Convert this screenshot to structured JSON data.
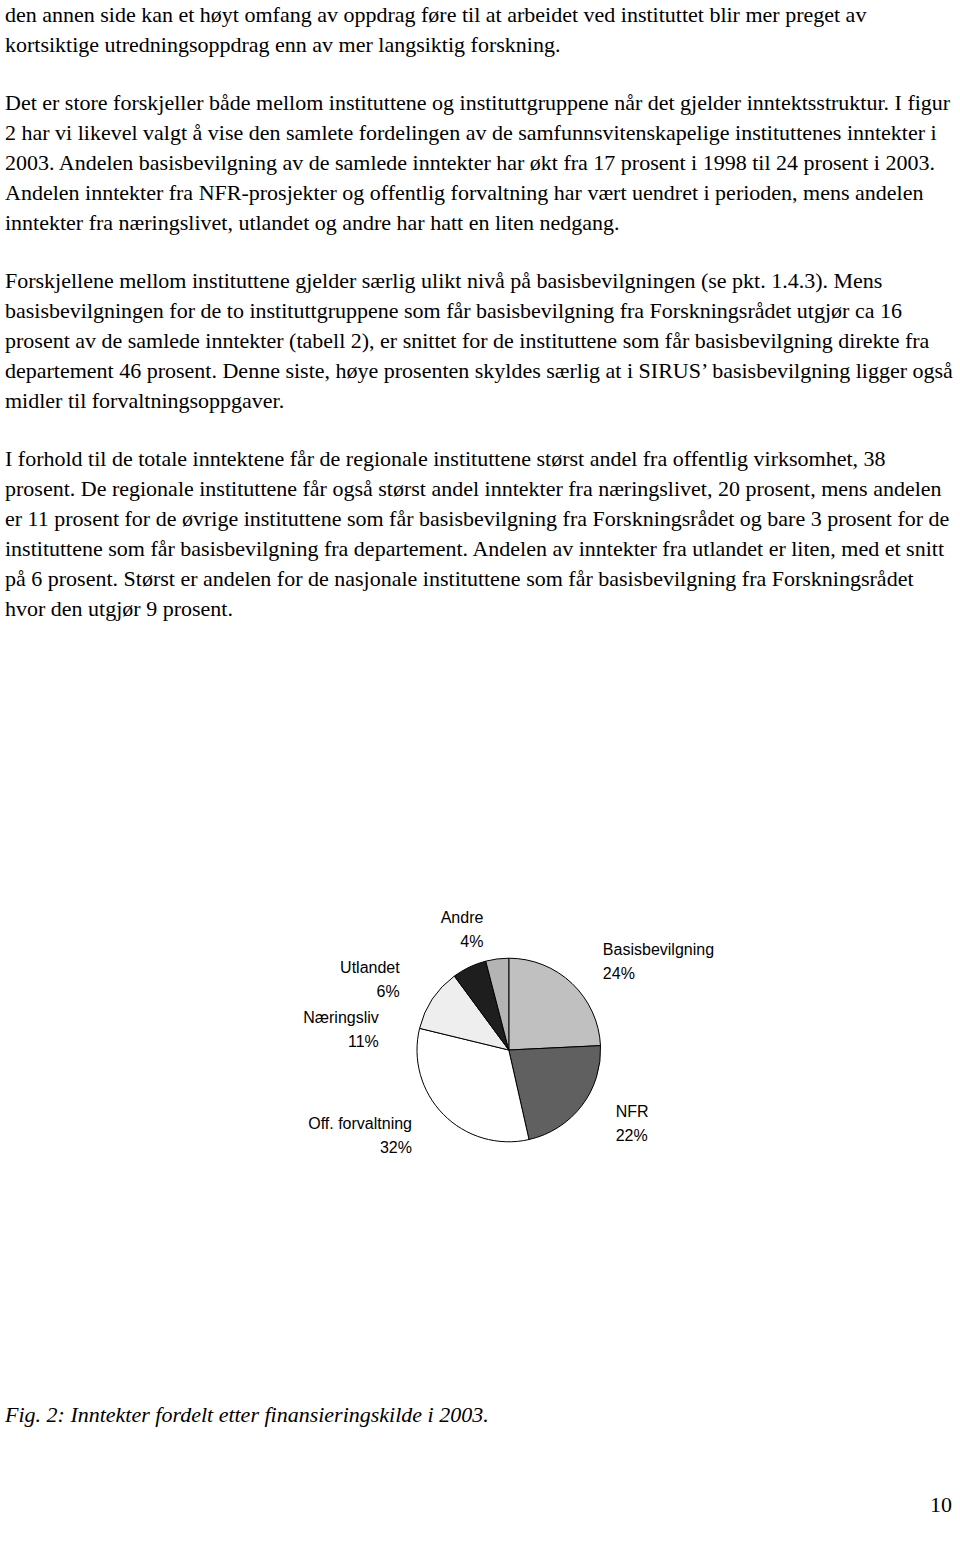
{
  "paragraphs": [
    "den annen side kan et høyt omfang av oppdrag føre til at arbeidet ved instituttet blir mer preget av kortsiktige utredningsoppdrag enn av mer langsiktig forskning.",
    "Det er store forskjeller både mellom instituttene og instituttgruppene når det gjelder inntektsstruktur. I figur 2 har vi likevel valgt å vise den samlete fordelingen av de samfunnsvitenskapelige instituttenes inntekter i 2003. Andelen basisbevilgning av de samlede inntekter har økt fra 17 prosent i 1998 til 24 prosent i 2003. Andelen inntekter fra NFR-prosjekter og offentlig forvaltning har vært uendret i perioden, mens andelen inntekter fra næringslivet, utlandet og andre har hatt en liten nedgang.",
    "Forskjellene mellom instituttene gjelder særlig ulikt nivå på basisbevilgningen (se pkt. 1.4.3). Mens basisbevilgningen for de to instituttgruppene som får basisbevilgning fra Forskningsrådet utgjør ca 16 prosent av de samlede inntekter (tabell 2), er snittet for de instituttene som får basisbevilgning direkte fra departement 46 prosent. Denne siste, høye prosenten skyldes særlig at i SIRUS’ basisbevilgning ligger også midler til forvaltningsoppgaver.",
    "I forhold til de totale inntektene får de regionale instituttene størst andel fra offentlig virksomhet, 38 prosent. De regionale instituttene får også størst andel inntekter fra næringslivet, 20 prosent, mens andelen er 11 prosent for de øvrige instituttene som får basisbevilgning fra Forskningsrådet og bare 3 prosent for de instituttene som får basisbevilgning fra departement. Andelen av inntekter fra utlandet er liten, med et snitt på 6 prosent. Størst er andelen for de nasjonale instituttene som får basisbevilgning fra Forskningsrådet hvor den utgjør 9 prosent."
  ],
  "chart_data": {
    "type": "pie",
    "categories": [
      "Basisbevilgning",
      "NFR",
      "Off. forvaltning",
      "Næringsliv",
      "Utlandet",
      "Andre"
    ],
    "values": [
      24,
      22,
      32,
      11,
      6,
      4
    ],
    "value_labels": [
      "24%",
      "22%",
      "32%",
      "11%",
      "6%",
      "4%"
    ],
    "colors": [
      "#c0c0c0",
      "#606060",
      "#ffffff",
      "#eeeeee",
      "#1e1e1e",
      "#b4b4b4"
    ],
    "data_labels": true
  },
  "caption": "Fig. 2: Inntekter fordelt etter finansieringskilde i 2003.",
  "page_number": 10
}
